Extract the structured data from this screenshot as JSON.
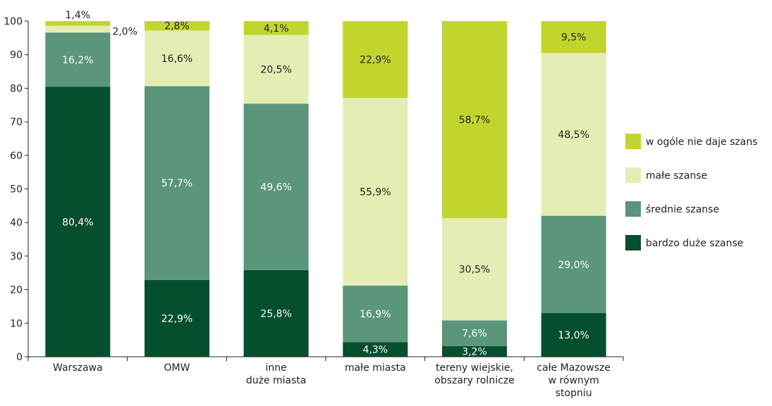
{
  "chart_data": {
    "type": "bar",
    "stacked": true,
    "ylim": [
      0,
      100
    ],
    "yticks": [
      "0",
      "10",
      "20",
      "30",
      "40",
      "50",
      "60",
      "70",
      "80",
      "90",
      "100"
    ],
    "categories": [
      [
        "Warszawa"
      ],
      [
        "OMW"
      ],
      [
        "inne",
        "duże miasta"
      ],
      [
        "małe miasta"
      ],
      [
        "tereny wiejskie,",
        "obszary rolnicze"
      ],
      [
        "całe Mazowsze",
        "w równym",
        "stopniu"
      ]
    ],
    "series": [
      {
        "name": "bardzo duże szanse",
        "color": "#044f2e",
        "values": [
          80.4,
          22.9,
          25.8,
          4.3,
          3.2,
          13.0
        ],
        "labels": [
          "80,4%",
          "22,9%",
          "25,8%",
          "4,3%",
          "3,2%",
          "13,0%"
        ]
      },
      {
        "name": "średnie szanse",
        "color": "#5a967c",
        "values": [
          16.2,
          57.7,
          49.6,
          16.9,
          7.6,
          29.0
        ],
        "labels": [
          "16,2%",
          "57,7%",
          "49,6%",
          "16,9%",
          "7,6%",
          "29,0%"
        ]
      },
      {
        "name": "małe szanse",
        "color": "#e4edb4",
        "values": [
          2.0,
          16.6,
          20.5,
          55.9,
          30.5,
          48.5
        ],
        "labels": [
          "2,0%",
          "16,6%",
          "20,5%",
          "55,9%",
          "30,5%",
          "48,5%"
        ]
      },
      {
        "name": "w ogóle nie daje szans",
        "color": "#c1d52d",
        "values": [
          1.4,
          2.8,
          4.1,
          22.9,
          58.7,
          9.5
        ],
        "labels": [
          "1,4%",
          "2,8%",
          "4,1%",
          "22,9%",
          "58,7%",
          "9,5%"
        ]
      }
    ],
    "legend_position": "right",
    "legend_order": [
      "w ogóle nie daje szans",
      "małe szanse",
      "średnie szanse",
      "bardzo duże szanse"
    ]
  }
}
